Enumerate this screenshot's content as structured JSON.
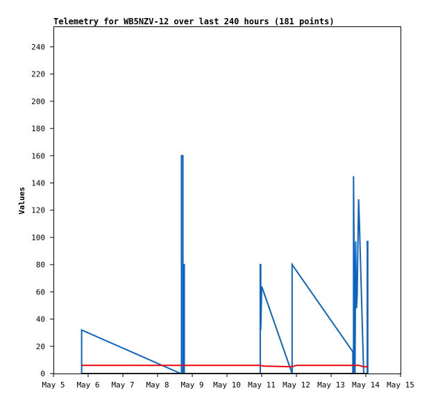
{
  "chart_data": {
    "type": "line",
    "title": "Telemetry for WB5NZV-12 over last 240 hours (181 points)",
    "xlabel": "",
    "ylabel": "Values",
    "x_ticks": [
      "May 5",
      "May 6",
      "May 7",
      "May 8",
      "May 9",
      "May 10",
      "May 11",
      "May 12",
      "May 13",
      "May 14",
      "May 15"
    ],
    "y_ticks": [
      0,
      20,
      40,
      60,
      80,
      100,
      120,
      140,
      160,
      180,
      200,
      220,
      240
    ],
    "xlim": [
      "May 5",
      "May 15"
    ],
    "ylim": [
      0,
      255
    ],
    "grid": false,
    "legend": "none",
    "series": [
      {
        "color": "#0b63c5",
        "points": [
          [
            "May 5 19:30",
            0
          ],
          [
            "May 5 19:30",
            32
          ],
          [
            "May 8 16:00",
            0
          ],
          [
            "May 8 16:30",
            0
          ],
          [
            "May 8 16:30",
            160
          ],
          [
            "May 8 17:30",
            160
          ],
          [
            "May 8 17:30",
            0
          ],
          [
            "May 8 18:00",
            0
          ],
          [
            "May 8 18:00",
            80
          ],
          [
            "May 8 18:30",
            80
          ],
          [
            "May 8 18:30",
            0
          ],
          [
            "May 10 23:00",
            0
          ],
          [
            "May 10 23:00",
            80
          ],
          [
            "May 10 23:20",
            80
          ],
          [
            "May 10 23:20",
            32
          ],
          [
            "May 11 00:00",
            64
          ],
          [
            "May 11 21:00",
            0
          ],
          [
            "May 11 21:00",
            80
          ],
          [
            "May 13 15:00",
            16
          ],
          [
            "May 13 15:00",
            0
          ],
          [
            "May 13 15:30",
            0
          ],
          [
            "May 13 15:30",
            145
          ],
          [
            "May 13 16:30",
            0
          ],
          [
            "May 13 17:00",
            97
          ],
          [
            "May 13 17:30",
            48
          ],
          [
            "May 13 18:00",
            57
          ],
          [
            "May 13 19:00",
            128
          ],
          [
            "May 13 19:30",
            113
          ],
          [
            "May 13 22:30",
            0
          ],
          [
            "May 14 01:00",
            0
          ],
          [
            "May 14 01:00",
            97
          ],
          [
            "May 14 01:20",
            97
          ],
          [
            "May 14 01:20",
            0
          ]
        ]
      },
      {
        "color": "#e8000b",
        "points": [
          [
            "May 5 19:30",
            6
          ],
          [
            "May 10 22:30",
            6
          ],
          [
            "May 11 02:00",
            5.5
          ],
          [
            "May 11 21:00",
            5
          ],
          [
            "May 12 00:00",
            6
          ],
          [
            "May 13 19:00",
            6
          ],
          [
            "May 13 22:30",
            5
          ],
          [
            "May 14 01:20",
            5
          ]
        ]
      },
      {
        "color": "#1a1a1a",
        "points": [
          [
            "May 5 19:30",
            0
          ],
          [
            "May 14 01:20",
            0
          ]
        ]
      }
    ]
  }
}
